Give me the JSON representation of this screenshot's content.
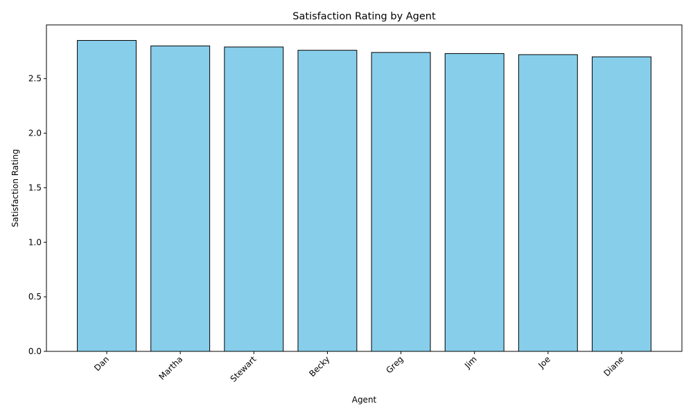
{
  "chart_data": {
    "type": "bar",
    "title": "Satisfaction Rating by Agent",
    "xlabel": "Agent",
    "ylabel": "Satisfaction Rating",
    "categories": [
      "Dan",
      "Martha",
      "Stewart",
      "Becky",
      "Greg",
      "Jim",
      "Joe",
      "Diane"
    ],
    "values": [
      2.85,
      2.8,
      2.79,
      2.76,
      2.74,
      2.73,
      2.72,
      2.7
    ],
    "ylim": [
      0,
      2.9925
    ],
    "yticks": [
      0.0,
      0.5,
      1.0,
      1.5,
      2.0,
      2.5
    ],
    "ytick_labels": [
      "0.0",
      "0.5",
      "1.0",
      "1.5",
      "2.0",
      "2.5"
    ],
    "x_tick_rotation_deg": 45,
    "grid": false,
    "legend": "none",
    "colors": {
      "bar_fill": "#87ceeb",
      "bar_edge": "#000000",
      "axis": "#000000"
    }
  }
}
